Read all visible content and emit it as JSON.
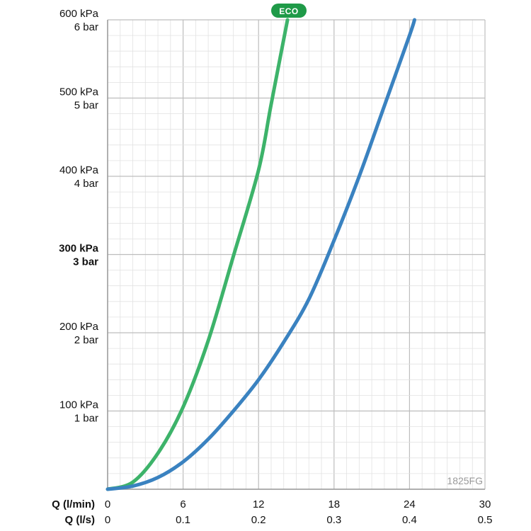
{
  "chart_data": {
    "type": "line",
    "x_axis_primary": {
      "title": "Q (l/min)",
      "ticks": [
        "0",
        "6",
        "12",
        "18",
        "24",
        "30"
      ],
      "range": [
        0,
        30
      ]
    },
    "x_axis_secondary": {
      "title": "Q (l/s)",
      "ticks": [
        "0",
        "0.1",
        "0.2",
        "0.3",
        "0.4",
        "0.5"
      ]
    },
    "y_axis": {
      "range": [
        0,
        600
      ],
      "unit": "kPa",
      "ticks": [
        {
          "value": 100,
          "kpa": "100 kPa",
          "bar": "1 bar",
          "bold": false
        },
        {
          "value": 200,
          "kpa": "200 kPa",
          "bar": "2 bar",
          "bold": false
        },
        {
          "value": 300,
          "kpa": "300 kPa",
          "bar": "3 bar",
          "bold": true
        },
        {
          "value": 400,
          "kpa": "400 kPa",
          "bar": "4 bar",
          "bold": false
        },
        {
          "value": 500,
          "kpa": "500 kPa",
          "bar": "5 bar",
          "bold": false
        },
        {
          "value": 600,
          "kpa": "600 kPa",
          "bar": "6 bar",
          "bold": false
        }
      ]
    },
    "grid": true,
    "series": [
      {
        "name": "ECO",
        "color": "#3db36a",
        "points": [
          [
            0,
            0
          ],
          [
            2,
            9
          ],
          [
            4,
            46
          ],
          [
            6,
            105
          ],
          [
            8,
            190
          ],
          [
            10,
            298
          ],
          [
            12,
            408
          ],
          [
            13,
            492
          ],
          [
            14.3,
            600
          ]
        ]
      },
      {
        "color": "#3a82c0",
        "points": [
          [
            0,
            0
          ],
          [
            2,
            4
          ],
          [
            4,
            15
          ],
          [
            6,
            35
          ],
          [
            8,
            64
          ],
          [
            10,
            100
          ],
          [
            12,
            140
          ],
          [
            14,
            188
          ],
          [
            16,
            243
          ],
          [
            18,
            318
          ],
          [
            20,
            400
          ],
          [
            22,
            490
          ],
          [
            24,
            580
          ],
          [
            24.4,
            600
          ]
        ]
      }
    ],
    "product_code": "1825FG"
  },
  "colors": {
    "eco_badge": "#1f9a48",
    "grid_major": "#bdbdbd",
    "grid_minor": "#e2e2e2",
    "plot_bg": "#ffffff"
  }
}
